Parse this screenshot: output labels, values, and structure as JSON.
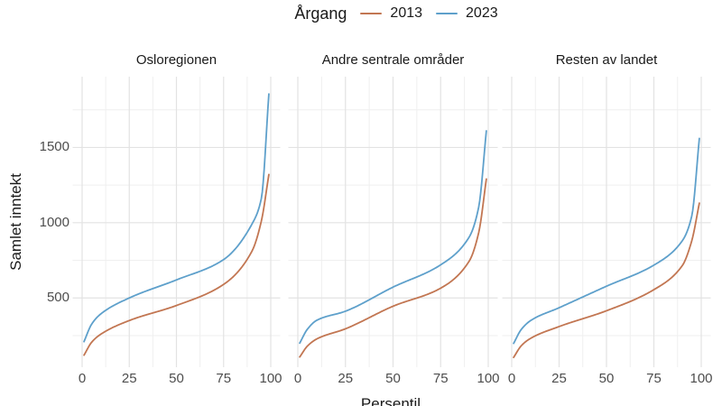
{
  "legend": {
    "title": "Årgang",
    "items": [
      {
        "label": "2013",
        "color": "#C27652"
      },
      {
        "label": "2023",
        "color": "#5EA0CB"
      }
    ]
  },
  "chart_data": {
    "type": "line",
    "title": "",
    "xlabel": "Persentil",
    "ylabel": "Samlet inntekt",
    "x_ticks": [
      0,
      25,
      50,
      75,
      100
    ],
    "y_ticks": [
      500,
      1000,
      1500
    ],
    "xlim": [
      -5,
      105
    ],
    "ylim": [
      40,
      1970
    ],
    "grid": "white background with light grey major and minor gridlines (ggplot theme_minimal), no axis lines, no tick marks",
    "legend_position": "top-center",
    "curve_shape": "income quantile curves: slow rise, flat middle, steep upper tail",
    "percentiles": [
      1,
      5,
      10,
      25,
      50,
      75,
      90,
      95,
      99
    ],
    "facets": [
      {
        "label": "Osloregionen",
        "series": [
          {
            "name": "2013",
            "color": "#C27652",
            "values": [
              120,
              205,
              260,
              350,
              450,
              590,
              810,
              1010,
              1320
            ]
          },
          {
            "name": "2023",
            "color": "#5EA0CB",
            "values": [
              210,
              325,
              395,
              500,
              620,
              755,
              990,
              1160,
              1855
            ]
          }
        ]
      },
      {
        "label": "Andre sentrale områder",
        "series": [
          {
            "name": "2013",
            "color": "#C27652",
            "values": [
              108,
              180,
              228,
              295,
              445,
              565,
              745,
              935,
              1290
            ]
          },
          {
            "name": "2023",
            "color": "#5EA0CB",
            "values": [
              200,
              292,
              352,
              412,
              572,
              720,
              905,
              1105,
              1610
            ]
          }
        ]
      },
      {
        "label": "Resten av landet",
        "series": [
          {
            "name": "2013",
            "color": "#C27652",
            "values": [
              105,
              182,
              232,
              310,
              415,
              555,
              715,
              880,
              1130
            ]
          },
          {
            "name": "2023",
            "color": "#5EA0CB",
            "values": [
              198,
              290,
              350,
              435,
              578,
              718,
              880,
              1045,
              1560
            ]
          }
        ]
      }
    ]
  }
}
